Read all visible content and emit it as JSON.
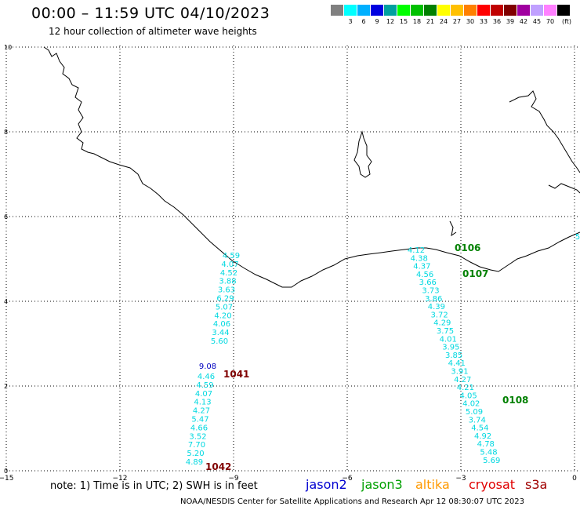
{
  "header": {
    "title": "00:00 – 11:59 UTC 04/10/2023",
    "subtitle": "12 hour collection of altimeter wave heights"
  },
  "legend": {
    "unit": "(ft)",
    "colors": [
      "#808080",
      "#00ffff",
      "#00b0ff",
      "#0000e0",
      "#00a0a0",
      "#00ff00",
      "#00c000",
      "#008000",
      "#ffff00",
      "#ffc000",
      "#ff8000",
      "#ff0000",
      "#c00000",
      "#800000",
      "#a000a0",
      "#c0a0ff",
      "#ff80ff",
      "#000000"
    ],
    "labels": [
      "3",
      "6",
      "9",
      "12",
      "15",
      "18",
      "21",
      "24",
      "27",
      "30",
      "33",
      "36",
      "39",
      "42",
      "45",
      "70"
    ]
  },
  "axes": {
    "x_ticks": [
      "−15",
      "−12",
      "−9",
      "−6",
      "−3",
      "0"
    ],
    "y_ticks": [
      "10",
      "8",
      "6",
      "4",
      "2",
      "0"
    ]
  },
  "tracks": [
    {
      "color": "#00d8e0",
      "values": [
        "4.59",
        "4.07",
        "4.52",
        "3.88",
        "3.63",
        "6.29",
        "5.07",
        "4.20",
        "4.06",
        "3.44",
        "5.60"
      ]
    },
    {
      "color": "#0000c0",
      "values": [
        "9.08"
      ]
    },
    {
      "color": "#00d8e0",
      "values": [
        "4.46",
        "4.59",
        "4.07",
        "4.13",
        "4.27",
        "5.47",
        "4.66",
        "3.52",
        "7.70",
        "5.20",
        "4.89"
      ]
    },
    {
      "color": "#00d8e0",
      "values": [
        "4.12",
        "4.38",
        "4.37",
        "4.56",
        "3.66",
        "3.73",
        "3.86",
        "4.39",
        "3.72",
        "4.29",
        "3.75",
        "4.01",
        "3.95",
        "3.85",
        "4.41",
        "3.91",
        "4.27",
        "4.21",
        "4.05",
        "4.02",
        "5.09",
        "3.74",
        "4.54",
        "4.92",
        "4.78",
        "5.48",
        "5.69"
      ]
    },
    {
      "color": "#00d8e0",
      "values": [
        "5"
      ]
    }
  ],
  "passes": [
    {
      "label": "1041",
      "color": "#800000"
    },
    {
      "label": "1042",
      "color": "#800000"
    },
    {
      "label": "0106",
      "color": "#008000"
    },
    {
      "label": "0107",
      "color": "#008000"
    },
    {
      "label": "0108",
      "color": "#008000"
    }
  ],
  "note": "note: 1) Time is in UTC; 2) SWH is in feet",
  "satellites": [
    {
      "name": "jason2",
      "color": "#0000d0"
    },
    {
      "name": "jason3",
      "color": "#00a000"
    },
    {
      "name": "altika",
      "color": "#ff9900"
    },
    {
      "name": "cryosat",
      "color": "#e00000"
    },
    {
      "name": "s3a",
      "color": "#a00000"
    }
  ],
  "footer": "NOAA/NESDIS Center for Satellite Applications and Research   Apr 12 08:30:07 UTC 2023"
}
